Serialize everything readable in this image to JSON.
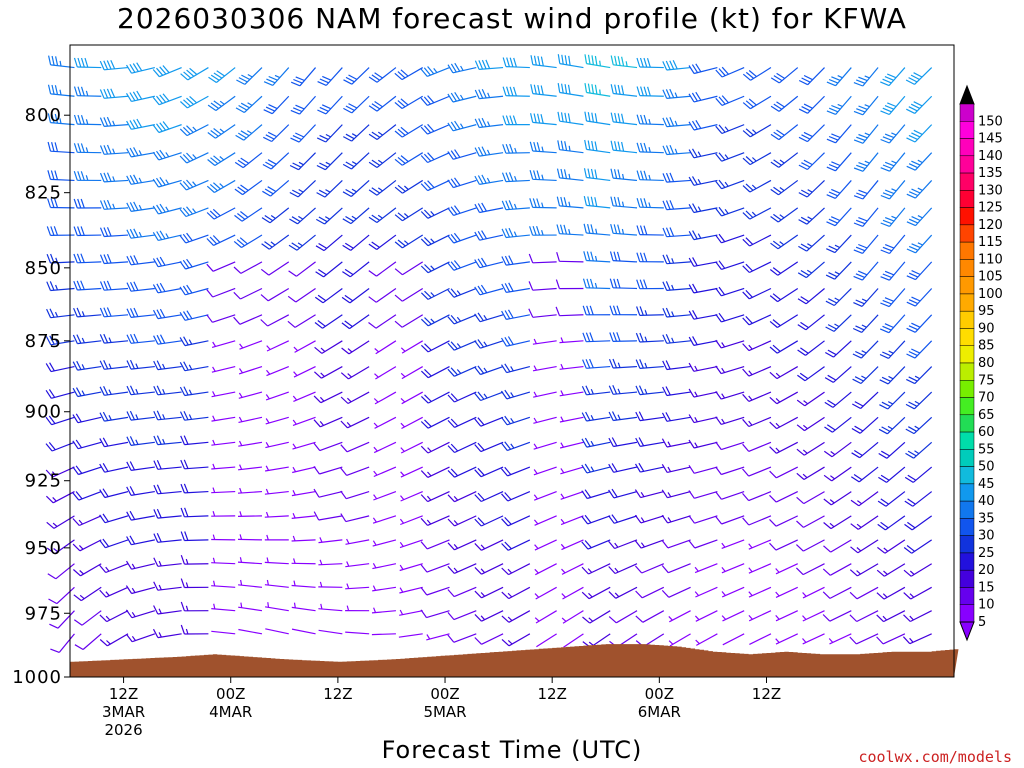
{
  "chart_data": {
    "type": "wind_barb_time_height",
    "title": "2026030306 NAM forecast wind profile (kt) for KFWA",
    "xlabel": "Forecast Time (UTC)",
    "ylabel": "",
    "credit": "coolwx.com/models",
    "y_axis": {
      "unit": "hPa",
      "ticks": [
        800,
        825,
        850,
        875,
        900,
        925,
        950,
        975,
        1000
      ],
      "range": [
        1000,
        778
      ]
    },
    "x_axis": {
      "unit": "hours since 2026-03-03 06Z",
      "range": [
        0,
        99
      ],
      "ticks": [
        {
          "hour": 6,
          "lines": [
            "12Z",
            "3MAR",
            "2026"
          ]
        },
        {
          "hour": 18,
          "lines": [
            "00Z",
            "4MAR"
          ]
        },
        {
          "hour": 30,
          "lines": [
            "12Z"
          ]
        },
        {
          "hour": 42,
          "lines": [
            "00Z",
            "5MAR"
          ]
        },
        {
          "hour": 54,
          "lines": [
            "12Z"
          ]
        },
        {
          "hour": 66,
          "lines": [
            "00Z",
            "6MAR"
          ]
        },
        {
          "hour": 78,
          "lines": [
            "12Z"
          ]
        }
      ]
    },
    "colorbar": {
      "unit": "kt",
      "levels": [
        5,
        10,
        15,
        20,
        25,
        30,
        35,
        40,
        45,
        50,
        55,
        60,
        65,
        70,
        75,
        80,
        85,
        90,
        95,
        100,
        105,
        110,
        115,
        120,
        125,
        130,
        135,
        140,
        145,
        150
      ],
      "colors": [
        "#8800ff",
        "#6600ee",
        "#4400dd",
        "#2211dd",
        "#1133dd",
        "#1155ee",
        "#1177ee",
        "#1199ee",
        "#11bbdd",
        "#00ccbb",
        "#00ddaa",
        "#22dd55",
        "#44ee22",
        "#77ee00",
        "#bbee00",
        "#eeee00",
        "#ffdd00",
        "#ffcc00",
        "#ffaa00",
        "#ff9900",
        "#ff8800",
        "#ff7700",
        "#ff4400",
        "#ff1100",
        "#ff0033",
        "#ff0066",
        "#ff0099",
        "#ff00bb",
        "#ff00dd",
        "#cc00cc"
      ],
      "top_arrow_color": "#000000",
      "bottom_arrow_color": "#8800ff"
    },
    "terrain": {
      "color": "#a0522d",
      "surface_pressure_points": [
        [
          0,
          994
        ],
        [
          6,
          993
        ],
        [
          12,
          992
        ],
        [
          16,
          991
        ],
        [
          20,
          992
        ],
        [
          24,
          993
        ],
        [
          30,
          994
        ],
        [
          36,
          993
        ],
        [
          40,
          992
        ],
        [
          44,
          991
        ],
        [
          48,
          990
        ],
        [
          52,
          989
        ],
        [
          56,
          988
        ],
        [
          60,
          987
        ],
        [
          64,
          987
        ],
        [
          68,
          988
        ],
        [
          72,
          990
        ],
        [
          76,
          991
        ],
        [
          80,
          990
        ],
        [
          84,
          991
        ],
        [
          88,
          991
        ],
        [
          92,
          990
        ],
        [
          96,
          990
        ],
        [
          99,
          989
        ]
      ]
    },
    "wind_field_summary": {
      "surface_layer_speed_kt": "5-15",
      "upper_layer_speed_kt": "20-45",
      "max_speed_kt_approx": 45,
      "calm_gap_hours": [
        [
          18,
          30
        ],
        [
          34,
          40
        ],
        [
          54,
          60
        ]
      ]
    }
  }
}
